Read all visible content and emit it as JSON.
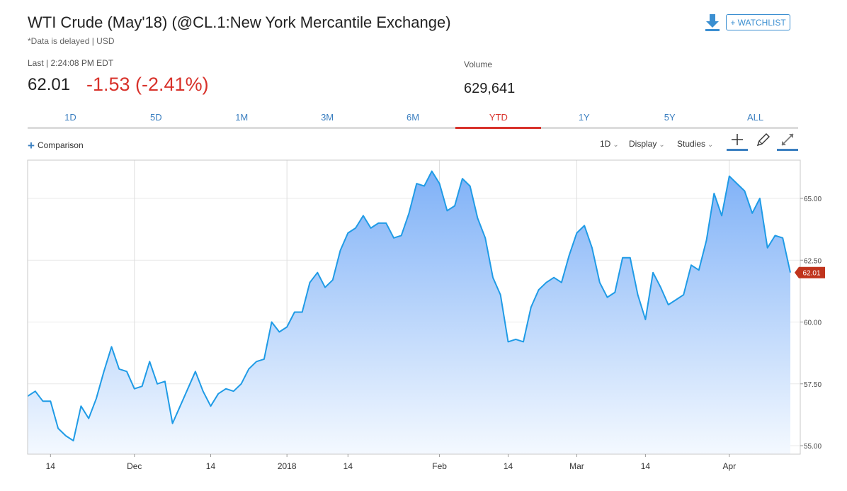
{
  "header": {
    "title": "WTI Crude (May'18) (@CL.1:New York Mercantile Exchange)",
    "subtitle": "*Data is delayed | USD",
    "watchlist_label": "+ WATCHLIST",
    "download_icon": "download-icon"
  },
  "quote": {
    "last_label": "Last | 2:24:08 PM EDT",
    "price": "62.01",
    "change": "-1.53 (-2.41%)",
    "change_color": "#d8322b",
    "volume_label": "Volume",
    "volume": "629,641"
  },
  "tabs": [
    {
      "label": "1D",
      "active": false
    },
    {
      "label": "5D",
      "active": false
    },
    {
      "label": "1M",
      "active": false
    },
    {
      "label": "3M",
      "active": false
    },
    {
      "label": "6M",
      "active": false
    },
    {
      "label": "YTD",
      "active": true
    },
    {
      "label": "1Y",
      "active": false
    },
    {
      "label": "5Y",
      "active": false
    },
    {
      "label": "ALL",
      "active": false
    }
  ],
  "toolbar": {
    "comparison_label": "Comparison",
    "interval_label": "1D",
    "display_label": "Display",
    "studies_label": "Studies",
    "tools": [
      "crosshair-icon",
      "draw-pencil-icon",
      "expand-icon"
    ]
  },
  "chart_data": {
    "type": "area",
    "title": "",
    "xlabel": "",
    "ylabel": "",
    "ylim": [
      55.0,
      66.5
    ],
    "yticks": [
      "65.00",
      "62.50",
      "60.00",
      "57.50",
      "55.00"
    ],
    "ytick_values": [
      65.0,
      62.5,
      60.0,
      57.5,
      55.0
    ],
    "x_ticks": [
      {
        "label": "14",
        "index": 3
      },
      {
        "label": "Dec",
        "index": 14
      },
      {
        "label": "14",
        "index": 24
      },
      {
        "label": "2018",
        "index": 34
      },
      {
        "label": "14",
        "index": 42
      },
      {
        "label": "Feb",
        "index": 54
      },
      {
        "label": "14",
        "index": 63
      },
      {
        "label": "Mar",
        "index": 72
      },
      {
        "label": "14",
        "index": 81
      },
      {
        "label": "Apr",
        "index": 92
      }
    ],
    "vertical_gridlines_at_index": [
      14,
      34,
      54,
      72,
      92
    ],
    "last_value_label": "62.01",
    "line_color": "#1f9be6",
    "fill_top_color": "#7fb1f7",
    "fill_bottom_color": "#f4f9ff",
    "label_badge_color": "#c0341d",
    "grid": true,
    "series": [
      {
        "values": [
          57.0,
          57.2,
          56.8,
          56.8,
          55.7,
          55.4,
          55.2,
          56.6,
          56.1,
          56.9,
          58.0,
          59.0,
          58.1,
          58.0,
          57.3,
          57.4,
          58.4,
          57.5,
          57.6,
          55.9,
          56.6,
          57.3,
          58.0,
          57.2,
          56.6,
          57.1,
          57.3,
          57.2,
          57.5,
          58.1,
          58.4,
          58.5,
          60.0,
          59.6,
          59.8,
          60.4,
          60.4,
          61.6,
          62.0,
          61.4,
          61.7,
          62.9,
          63.6,
          63.8,
          64.3,
          63.8,
          64.0,
          64.0,
          63.4,
          63.5,
          64.4,
          65.6,
          65.5,
          66.1,
          65.6,
          64.5,
          64.7,
          65.8,
          65.5,
          64.2,
          63.4,
          61.8,
          61.1,
          59.2,
          59.3,
          59.2,
          60.6,
          61.3,
          61.6,
          61.8,
          61.6,
          62.7,
          63.6,
          63.9,
          63.0,
          61.6,
          61.0,
          61.2,
          62.6,
          62.6,
          61.1,
          60.1,
          62.0,
          61.4,
          60.7,
          60.9,
          61.1,
          62.3,
          62.1,
          63.3,
          65.2,
          64.3,
          65.9,
          65.6,
          65.3,
          64.4,
          65.0,
          63.0,
          63.5,
          63.4,
          62.0
        ]
      }
    ]
  }
}
